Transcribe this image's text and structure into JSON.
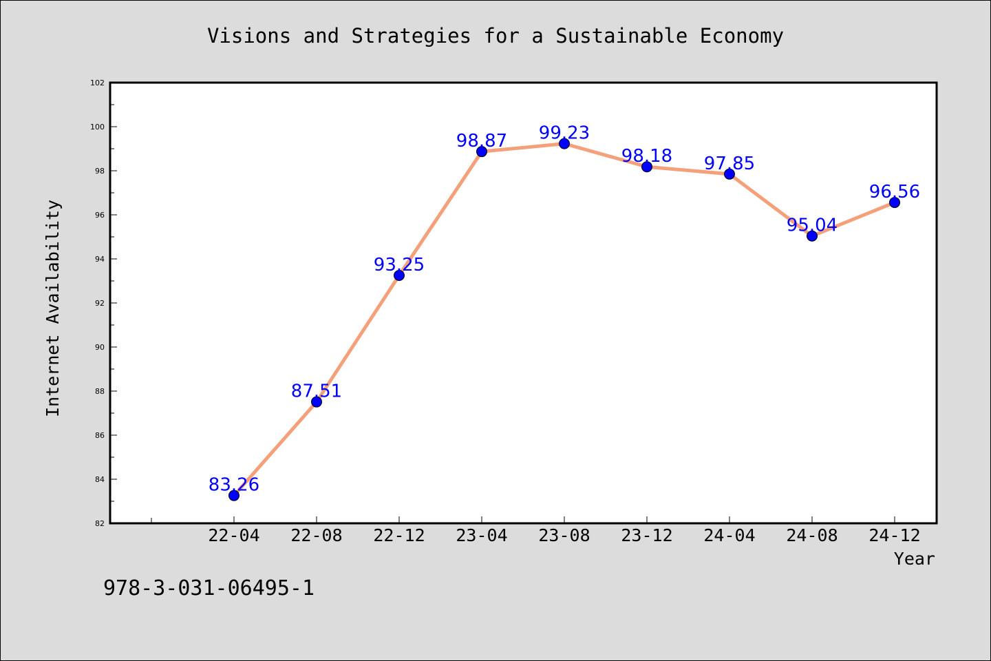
{
  "colors": {
    "background": "#dcdcdc",
    "plot_background": "#ffffff",
    "line": "#f4a07a",
    "marker": "#0000ff",
    "data_label": "#0000ff"
  },
  "footer": {
    "isbn": "978-3-031-06495-1"
  },
  "chart_data": {
    "type": "line",
    "title": "Visions and Strategies for a Sustainable Economy",
    "xlabel": "Year",
    "ylabel": "Internet Availability",
    "categories": [
      "22-04",
      "22-08",
      "22-12",
      "23-04",
      "23-08",
      "23-12",
      "24-04",
      "24-08",
      "24-12"
    ],
    "series": [
      {
        "values": [
          83.26,
          87.51,
          93.25,
          98.87,
          99.23,
          98.18,
          97.85,
          95.04,
          96.56
        ],
        "data_labels": [
          "83.26",
          "87.51",
          "93.25",
          "98.87",
          "99.23",
          "98.18",
          "97.85",
          "95.04",
          "96.56"
        ]
      }
    ],
    "ylim": [
      82,
      102
    ],
    "yticks": [
      82,
      84,
      86,
      88,
      90,
      92,
      94,
      96,
      98,
      100,
      102
    ],
    "ytick_labels": [
      "82",
      "84",
      "86",
      "88",
      "90",
      "92",
      "94",
      "96",
      "98",
      "100",
      "102"
    ],
    "grid": false,
    "legend": "none",
    "marker": "circle"
  }
}
